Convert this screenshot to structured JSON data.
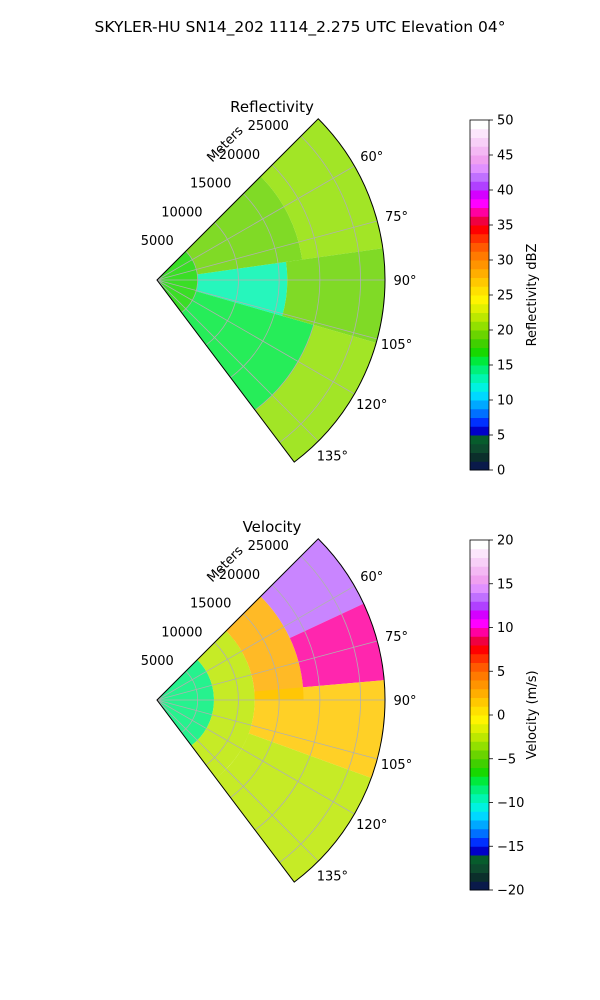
{
  "figure": {
    "suptitle": "SKYLER-HU  SN14_202  1114_2.275 UTC Elevation 04°"
  },
  "palette": {
    "reflectivity": [
      "#0a1a4a",
      "#0b2f2b",
      "#0d4a2e",
      "#075c2c",
      "#0000c8",
      "#0030ff",
      "#0070ff",
      "#00a8ff",
      "#00d8ff",
      "#00f2e0",
      "#00f5b0",
      "#00f07a",
      "#00ea3c",
      "#18d800",
      "#40d000",
      "#6ad400",
      "#92e000",
      "#bce800",
      "#e0f000",
      "#fff400",
      "#ffe000",
      "#ffc800",
      "#ffae00",
      "#ff9400",
      "#ff7a00",
      "#ff5a00",
      "#ff3000",
      "#ff0000",
      "#f00040",
      "#ff00a0",
      "#ff00ff",
      "#d400ff",
      "#b040ff",
      "#c070ff",
      "#e090ff",
      "#f0a0f0",
      "#f4b8f4",
      "#f8d0f8",
      "#fce6fc",
      "#ffffff"
    ],
    "velocity": [
      "#0a1a4a",
      "#0b2f2b",
      "#0d4a2e",
      "#075c2c",
      "#0000c8",
      "#0030ff",
      "#0070ff",
      "#00a8ff",
      "#00d8ff",
      "#00f2e0",
      "#00f5b0",
      "#00f07a",
      "#00ea3c",
      "#18d800",
      "#40d000",
      "#6ad400",
      "#92e000",
      "#bce800",
      "#e0f000",
      "#fff400",
      "#ffe000",
      "#ffc800",
      "#ffae00",
      "#ff9400",
      "#ff7a00",
      "#ff5a00",
      "#ff3000",
      "#ff0000",
      "#f00040",
      "#ff00a0",
      "#ff00ff",
      "#d400ff",
      "#b040ff",
      "#c070ff",
      "#e090ff",
      "#f0a0f0",
      "#f4b8f4",
      "#f8d0f8",
      "#fce6fc",
      "#ffffff"
    ]
  },
  "chart_data": [
    {
      "id": "reflectivity",
      "type": "heatmap",
      "projection": "polar",
      "title": "Reflectivity",
      "radial_label": "Meters",
      "radial_ticks": [
        5000,
        10000,
        15000,
        20000,
        25000
      ],
      "radial_tick_labels": [
        "5000",
        "10000",
        "15000",
        "20000",
        "25000"
      ],
      "r_max": 28000,
      "angular_range_deg": [
        45,
        143
      ],
      "angular_ticks_deg": [
        60,
        75,
        90,
        105,
        120,
        135
      ],
      "angular_tick_labels": [
        "60°",
        "75°",
        "90°",
        "105°",
        "120°",
        "135°"
      ],
      "grid": true,
      "colorbar": {
        "label": "Reflectivity dBZ",
        "vmin": 0,
        "vmax": 50,
        "ticks": [
          0,
          5,
          10,
          15,
          20,
          25,
          30,
          35,
          40,
          45,
          50
        ],
        "tick_labels": [
          "0",
          "5",
          "10",
          "15",
          "20",
          "25",
          "30",
          "35",
          "40",
          "45",
          "50"
        ]
      },
      "field": {
        "regions": [
          {
            "r": [
              0,
              5000
            ],
            "az": [
              45,
              143
            ],
            "value": 17
          },
          {
            "r": [
              5000,
              16000
            ],
            "az": [
              82,
              106
            ],
            "value": 13
          },
          {
            "r": [
              5000,
              18000
            ],
            "az": [
              45,
              82
            ],
            "value": 19
          },
          {
            "r": [
              5000,
              20000
            ],
            "az": [
              106,
              143
            ],
            "value": 16
          },
          {
            "r": [
              18000,
              28000
            ],
            "az": [
              45,
              82
            ],
            "value": 21
          },
          {
            "r": [
              16000,
              28000
            ],
            "az": [
              82,
              106
            ],
            "value": 19
          },
          {
            "r": [
              20000,
              28000
            ],
            "az": [
              106,
              143
            ],
            "value": 20
          }
        ]
      }
    },
    {
      "id": "velocity",
      "type": "heatmap",
      "projection": "polar",
      "title": "Velocity",
      "radial_label": "Meters",
      "radial_ticks": [
        5000,
        10000,
        15000,
        20000,
        25000
      ],
      "radial_tick_labels": [
        "5000",
        "10000",
        "15000",
        "20000",
        "25000"
      ],
      "r_max": 28000,
      "angular_range_deg": [
        45,
        143
      ],
      "angular_ticks_deg": [
        60,
        75,
        90,
        105,
        120,
        135
      ],
      "angular_tick_labels": [
        "60°",
        "75°",
        "90°",
        "105°",
        "120°",
        "135°"
      ],
      "grid": true,
      "colorbar": {
        "label": "Velocity (m/s)",
        "vmin": -20,
        "vmax": 20,
        "ticks": [
          -20,
          -15,
          -10,
          -5,
          0,
          5,
          10,
          15,
          20
        ],
        "tick_labels": [
          "−20",
          "−15",
          "−10",
          "−5",
          "0",
          "5",
          "10",
          "15",
          "20"
        ]
      },
      "field": {
        "regions": [
          {
            "r": [
              0,
              7000
            ],
            "az": [
              45,
              143
            ],
            "value": -9
          },
          {
            "r": [
              7000,
              12000
            ],
            "az": [
              45,
              143
            ],
            "value": -3
          },
          {
            "r": [
              12000,
              18000
            ],
            "az": [
              45,
              90
            ],
            "value": 2
          },
          {
            "r": [
              18000,
              28000
            ],
            "az": [
              45,
              65
            ],
            "value": 13
          },
          {
            "r": [
              18000,
              28000
            ],
            "az": [
              65,
              85
            ],
            "value": 9
          },
          {
            "r": [
              12000,
              28000
            ],
            "az": [
              85,
              110
            ],
            "value": 1
          },
          {
            "r": [
              12000,
              28000
            ],
            "az": [
              110,
              143
            ],
            "value": -3
          }
        ]
      }
    }
  ]
}
